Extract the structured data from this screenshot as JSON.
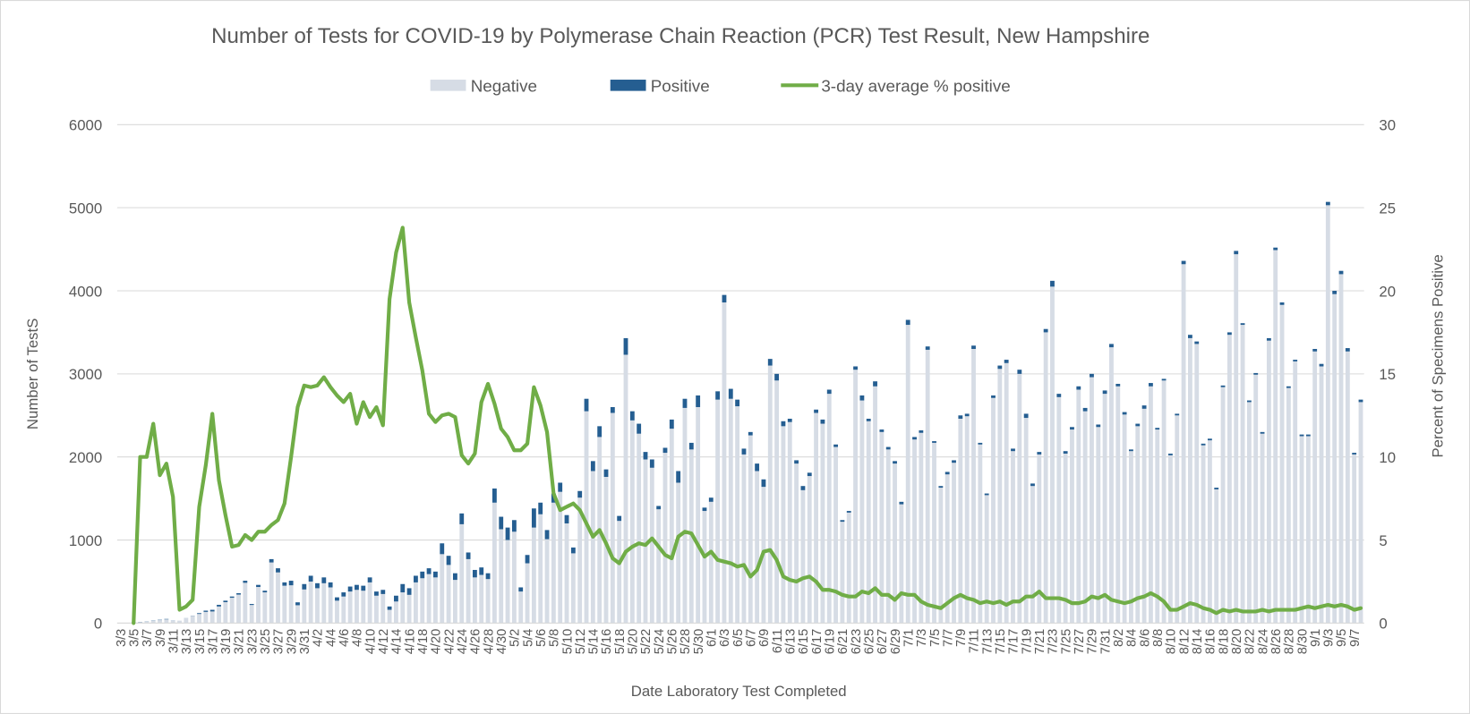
{
  "chart_data": {
    "type": "bar",
    "title": "Number of Tests for COVID-19 by Polymerase Chain Reaction (PCR) Test Result, New Hampshire",
    "xlabel": "Date Laboratory Test Completed",
    "ylabel": "Number of TestS",
    "y2label": "Percent of Specimens Positive",
    "legend": "top",
    "grid": true,
    "stacked": true,
    "ylim": [
      0,
      6000
    ],
    "yticks": [
      0,
      1000,
      2000,
      3000,
      4000,
      5000,
      6000
    ],
    "y2lim": [
      0,
      30
    ],
    "y2ticks": [
      0,
      5,
      10,
      15,
      20,
      25,
      30
    ],
    "categories": [
      "3/3",
      null,
      "3/5",
      null,
      "3/7",
      null,
      "3/9",
      null,
      "3/11",
      null,
      "3/13",
      null,
      "3/15",
      null,
      "3/17",
      null,
      "3/19",
      null,
      "3/21",
      null,
      "3/23",
      null,
      "3/25",
      null,
      "3/27",
      null,
      "3/29",
      null,
      "3/31",
      null,
      "4/2",
      null,
      "4/4",
      null,
      "4/6",
      null,
      "4/8",
      null,
      "4/10",
      null,
      "4/12",
      null,
      "4/14",
      null,
      "4/16",
      null,
      "4/18",
      null,
      "4/20",
      null,
      "4/22",
      null,
      "4/24",
      null,
      "4/26",
      null,
      "4/28",
      null,
      "4/30",
      null,
      "5/2",
      null,
      "5/4",
      null,
      "5/6",
      null,
      "5/8",
      null,
      "5/10",
      null,
      "5/12",
      null,
      "5/14",
      null,
      "5/16",
      null,
      "5/18",
      null,
      "5/20",
      null,
      "5/22",
      null,
      "5/24",
      null,
      "5/26",
      null,
      "5/28",
      null,
      "5/30",
      null,
      "6/1",
      null,
      "6/3",
      null,
      "6/5",
      null,
      "6/7",
      null,
      "6/9",
      null,
      "6/11",
      null,
      "6/13",
      null,
      "6/15",
      null,
      "6/17",
      null,
      "6/19",
      null,
      "6/21",
      null,
      "6/23",
      null,
      "6/25",
      null,
      "6/27",
      null,
      "6/29",
      null,
      "7/1",
      null,
      "7/3",
      null,
      "7/5",
      null,
      "7/7",
      null,
      "7/9",
      null,
      "7/11",
      null,
      "7/13",
      null,
      "7/15",
      null,
      "7/17",
      null,
      "7/19",
      null,
      "7/21",
      null,
      "7/23",
      null,
      "7/25",
      null,
      "7/27",
      null,
      "7/29",
      null,
      "7/31",
      null,
      "8/2",
      null,
      "8/4",
      null,
      "8/6",
      null,
      "8/8",
      null,
      "8/10",
      null,
      "8/12",
      null,
      "8/14",
      null,
      "8/16",
      null,
      "8/18",
      null,
      "8/20",
      null,
      "8/22",
      null,
      "8/24",
      null,
      "8/26",
      null,
      "8/28",
      null,
      "8/30",
      null,
      "9/1",
      null,
      "9/3",
      null,
      "9/5",
      null,
      "9/7",
      null
    ],
    "series": [
      {
        "name": "Negative",
        "color": "#d6dce5",
        "values": [
          0,
          0,
          9,
          13,
          18,
          27,
          36,
          45,
          28,
          30,
          59,
          88,
          110,
          135,
          140,
          200,
          252,
          305,
          343,
          485,
          218,
          435,
          370,
          730,
          610,
          450,
          455,
          215,
          405,
          500,
          420,
          480,
          430,
          270,
          320,
          380,
          400,
          390,
          490,
          330,
          350,
          160,
          260,
          370,
          340,
          490,
          540,
          590,
          550,
          830,
          700,
          520,
          1190,
          770,
          550,
          580,
          530,
          1450,
          1130,
          1000,
          1100,
          380,
          720,
          1150,
          1310,
          1010,
          1450,
          1580,
          1200,
          840,
          1510,
          2550,
          1830,
          2240,
          1760,
          2530,
          1230,
          3230,
          2440,
          2280,
          1970,
          1870,
          1370,
          2050,
          2340,
          1690,
          2590,
          2090,
          2600,
          1350,
          1460,
          2690,
          3860,
          2700,
          2610,
          2030,
          2260,
          1830,
          1640,
          3100,
          2920,
          2370,
          2420,
          1920,
          1600,
          1770,
          2530,
          2400,
          2760,
          2120,
          1220,
          1330,
          3050,
          2680,
          2430,
          2850,
          2300,
          2090,
          1920,
          1430,
          3590,
          2210,
          2290,
          3290,
          2170,
          1630,
          1790,
          1930,
          2460,
          2490,
          3300,
          2150,
          1540,
          2710,
          3060,
          3130,
          2070,
          3000,
          2470,
          1650,
          2030,
          3500,
          4050,
          2720,
          2040,
          2330,
          2810,
          2550,
          2960,
          2360,
          2760,
          3320,
          2850,
          2510,
          2070,
          2370,
          2580,
          2850,
          2330,
          2920,
          2020,
          2500,
          4320,
          3430,
          3360,
          2140,
          2200,
          1610,
          2840,
          3470,
          4440,
          3590,
          2660,
          2990,
          2280,
          3400,
          4490,
          3830,
          2830,
          3150,
          2250,
          2250,
          3270,
          3090,
          5030,
          3960,
          4200,
          3270,
          2030,
          2660
        ]
      },
      {
        "name": "Positive",
        "color": "#255e91",
        "values": [
          0,
          0,
          1,
          2,
          2,
          3,
          4,
          5,
          2,
          0,
          1,
          2,
          10,
          15,
          20,
          20,
          18,
          15,
          17,
          25,
          12,
          25,
          20,
          40,
          50,
          40,
          55,
          35,
          65,
          70,
          60,
          70,
          60,
          40,
          50,
          60,
          60,
          60,
          60,
          50,
          50,
          40,
          70,
          100,
          80,
          80,
          80,
          70,
          70,
          130,
          110,
          80,
          130,
          80,
          90,
          90,
          70,
          170,
          150,
          150,
          140,
          50,
          100,
          230,
          140,
          110,
          110,
          110,
          100,
          70,
          80,
          150,
          120,
          130,
          90,
          70,
          60,
          200,
          110,
          120,
          90,
          100,
          40,
          60,
          110,
          140,
          110,
          80,
          140,
          40,
          50,
          100,
          90,
          120,
          80,
          70,
          40,
          90,
          90,
          80,
          80,
          60,
          40,
          40,
          50,
          40,
          40,
          50,
          50,
          30,
          20,
          20,
          40,
          60,
          30,
          60,
          30,
          30,
          30,
          30,
          60,
          30,
          30,
          40,
          20,
          20,
          30,
          30,
          40,
          30,
          40,
          20,
          20,
          30,
          40,
          40,
          30,
          50,
          50,
          30,
          30,
          40,
          70,
          40,
          30,
          30,
          40,
          40,
          40,
          30,
          40,
          40,
          30,
          30,
          20,
          30,
          40,
          40,
          20,
          20,
          20,
          20,
          40,
          40,
          30,
          20,
          20,
          20,
          20,
          30,
          40,
          20,
          20,
          20,
          20,
          30,
          30,
          30,
          20,
          20,
          20,
          20,
          30,
          30,
          40,
          40,
          40,
          40,
          20,
          30
        ]
      },
      {
        "name": "3-day average % positive",
        "type": "line",
        "axis": "y2",
        "color": "#70ad47",
        "values": [
          null,
          null,
          0,
          10,
          10,
          12,
          8.9,
          9.6,
          7.6,
          0.8,
          1,
          1.4,
          7,
          9.5,
          12.6,
          8.6,
          6.5,
          4.6,
          4.7,
          5.3,
          5,
          5.5,
          5.5,
          5.9,
          6.2,
          7.2,
          10,
          13,
          14.3,
          14.2,
          14.3,
          14.8,
          14.2,
          13.7,
          13.3,
          13.8,
          12,
          13.3,
          12.4,
          13,
          11.9,
          19.5,
          22.3,
          23.8,
          19.3,
          17.2,
          15.2,
          12.6,
          12.1,
          12.5,
          12.6,
          12.4,
          10.1,
          9.6,
          10.2,
          13.3,
          14.4,
          13.2,
          11.7,
          11.2,
          10.4,
          10.4,
          10.8,
          14.2,
          13.1,
          11.5,
          7.8,
          6.8,
          7,
          7.2,
          6.8,
          6,
          5.2,
          5.6,
          4.8,
          3.9,
          3.6,
          4.3,
          4.6,
          4.8,
          4.7,
          5.1,
          4.6,
          4.1,
          3.9,
          5.2,
          5.5,
          5.4,
          4.7,
          4.0,
          4.3,
          3.8,
          3.7,
          3.6,
          3.4,
          3.5,
          2.8,
          3.2,
          4.3,
          4.4,
          3.8,
          2.8,
          2.6,
          2.5,
          2.7,
          2.8,
          2.5,
          2.0,
          2.0,
          1.9,
          1.7,
          1.6,
          1.6,
          1.9,
          1.8,
          2.1,
          1.7,
          1.7,
          1.4,
          1.8,
          1.7,
          1.7,
          1.3,
          1.1,
          1.0,
          0.9,
          1.2,
          1.5,
          1.7,
          1.5,
          1.4,
          1.2,
          1.3,
          1.2,
          1.3,
          1.1,
          1.3,
          1.3,
          1.6,
          1.6,
          1.9,
          1.5,
          1.5,
          1.5,
          1.4,
          1.2,
          1.2,
          1.3,
          1.6,
          1.5,
          1.7,
          1.4,
          1.3,
          1.2,
          1.3,
          1.5,
          1.6,
          1.8,
          1.6,
          1.3,
          0.8,
          0.8,
          1.0,
          1.2,
          1.1,
          0.9,
          0.8,
          0.6,
          0.8,
          0.7,
          0.8,
          0.7,
          0.7,
          0.7,
          0.8,
          0.7,
          0.8,
          0.8,
          0.8,
          0.8,
          0.9,
          1.0,
          0.9,
          1.0,
          1.1,
          1.0,
          1.1,
          1.0,
          0.8,
          0.9
        ]
      }
    ]
  }
}
